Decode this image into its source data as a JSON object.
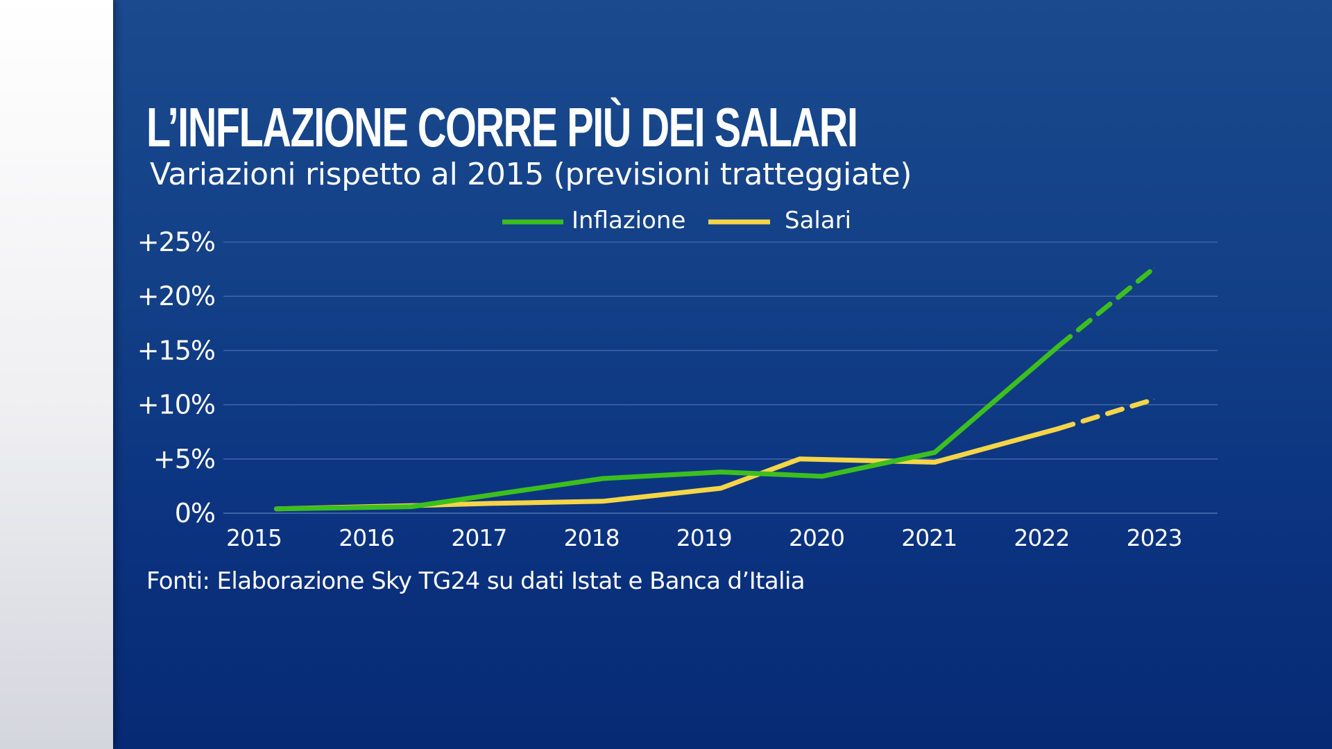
{
  "chart_data": {
    "type": "line",
    "title": "L’INFLAZIONE CORRE PIÙ DEI SALARI",
    "subtitle": "Variazioni rispetto al 2015 (previsioni tratteggiate)",
    "source": "Fonti: Elaborazione Sky TG24 su dati Istat e Banca d’Italia",
    "xlabel": "",
    "ylabel": "",
    "ylim": [
      0,
      25
    ],
    "y_ticks": [
      {
        "value": 0,
        "label": "0%"
      },
      {
        "value": 5,
        "label": "+5%"
      },
      {
        "value": 10,
        "label": "+10%"
      },
      {
        "value": 15,
        "label": "+15%"
      },
      {
        "value": 20,
        "label": "+20%"
      },
      {
        "value": 25,
        "label": "+25%"
      }
    ],
    "categories": [
      "2015",
      "2016",
      "2017",
      "2018",
      "2019",
      "2020",
      "2021",
      "2022",
      "2023"
    ],
    "grid": true,
    "legend_position": "top-center",
    "series": [
      {
        "name": "Inflazione",
        "color": "#3cbf1e",
        "points": [
          {
            "x": 2015.2,
            "y": 0.4
          },
          {
            "x": 2016.4,
            "y": 0.6
          },
          {
            "x": 2018.1,
            "y": 3.2
          },
          {
            "x": 2019.15,
            "y": 3.8
          },
          {
            "x": 2020.05,
            "y": 3.4
          },
          {
            "x": 2021.05,
            "y": 5.6
          },
          {
            "x": 2022.15,
            "y": 15.4
          },
          {
            "x": 2023.0,
            "y": 22.6
          }
        ],
        "forecast_from_x": 2022.15
      },
      {
        "name": "Salari",
        "color": "#f5d547",
        "points": [
          {
            "x": 2015.2,
            "y": 0.4
          },
          {
            "x": 2016.4,
            "y": 0.7
          },
          {
            "x": 2017.1,
            "y": 0.9
          },
          {
            "x": 2018.1,
            "y": 1.1
          },
          {
            "x": 2019.15,
            "y": 2.3
          },
          {
            "x": 2019.85,
            "y": 5.0
          },
          {
            "x": 2021.05,
            "y": 4.7
          },
          {
            "x": 2022.15,
            "y": 7.8
          },
          {
            "x": 2023.0,
            "y": 10.5
          }
        ],
        "forecast_from_x": 2022.15
      }
    ]
  }
}
